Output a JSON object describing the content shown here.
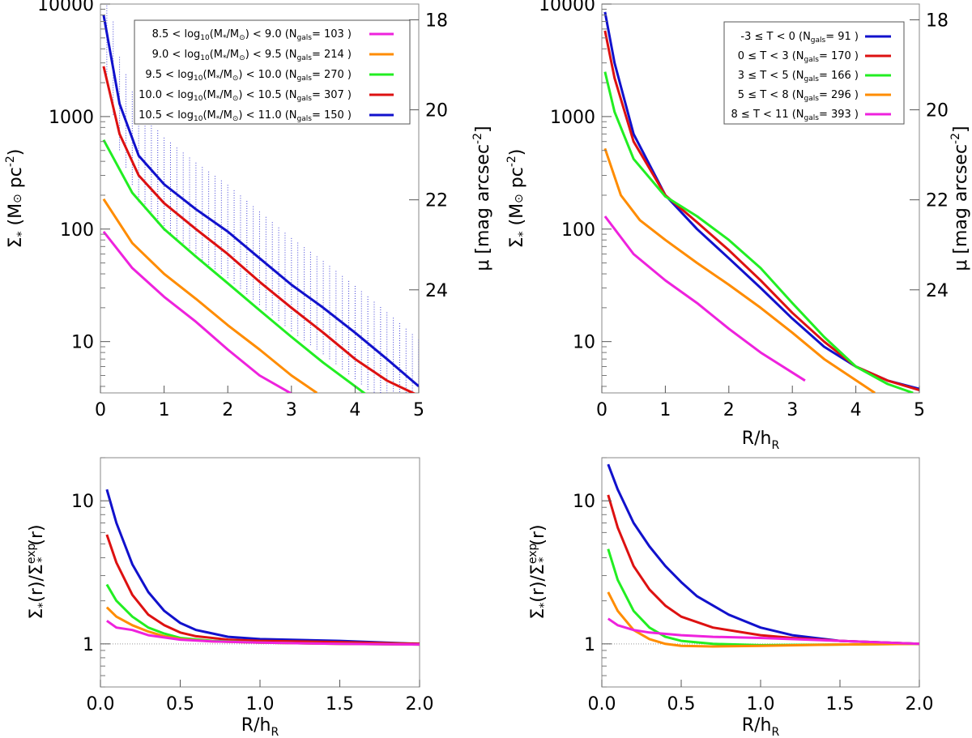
{
  "colors": {
    "magenta": "#ee22dd",
    "orange": "#ff8c00",
    "green": "#22ee22",
    "red": "#dd1111",
    "blue": "#1111cc"
  },
  "chart_data": [
    {
      "type": "line",
      "panel": "top-left",
      "xlabel": "",
      "ylabel_left": "Σ* (M⊙ pc⁻²)",
      "ylabel_right": "μ [mag arcsec⁻²]",
      "yscale": "log",
      "xlim": [
        0,
        5
      ],
      "ylim": [
        3.5,
        10000
      ],
      "xticks": [
        "0",
        "1",
        "2",
        "3",
        "4",
        "5"
      ],
      "yticks": [
        "10",
        "100",
        "1000",
        "10000"
      ],
      "right_ticks": [
        "18",
        "20",
        "22",
        "24"
      ],
      "legend_position": "top-right",
      "series": [
        {
          "name": "8.5 < log10(M*/M⊙) < 9.0  (Ngals= 103 )",
          "label_pre": "8.5 < log",
          "label_mid": "(M",
          "label_post": "/M",
          "label_end": ") < 9.0  (N",
          "label_count": "= 103 )",
          "color": "magenta",
          "x": [
            0.05,
            0.5,
            1,
            1.5,
            2,
            2.5,
            3.1
          ],
          "y": [
            95,
            45,
            25,
            15,
            8.5,
            5,
            3.2
          ]
        },
        {
          "name": "9.0 < log10(M*/M⊙) < 9.5  (Ngals= 214 )",
          "label_pre": "9.0 < log",
          "label_mid": "(M",
          "label_post": "/M",
          "label_end": ") < 9.5  (N",
          "label_count": "= 214 )",
          "color": "orange",
          "x": [
            0.05,
            0.5,
            1,
            1.5,
            2,
            2.5,
            3,
            3.4
          ],
          "y": [
            185,
            75,
            40,
            24,
            14,
            8.5,
            5,
            3.5
          ]
        },
        {
          "name": "9.5 < log10(M*/M⊙) < 10.0  (Ngals= 270 )",
          "label_pre": "9.5 < log",
          "label_mid": "(M",
          "label_post": "/M",
          "label_end": ") < 10.0  (N",
          "label_count": "= 270 )",
          "color": "green",
          "x": [
            0.05,
            0.5,
            1,
            1.5,
            2,
            2.5,
            3,
            3.5,
            4.2
          ],
          "y": [
            620,
            210,
            100,
            57,
            33,
            19,
            11,
            6.5,
            3.3
          ]
        },
        {
          "name": "10.0 < log10(M*/M⊙) < 10.5  (Ngals= 307 )",
          "label_pre": "10.0 < log",
          "label_mid": "(M",
          "label_post": "/M",
          "label_end": ") < 10.5  (N",
          "label_count": "= 307 )",
          "color": "red",
          "x": [
            0.05,
            0.3,
            0.6,
            1,
            1.5,
            2,
            2.5,
            3,
            3.5,
            4,
            4.5,
            5
          ],
          "y": [
            2800,
            700,
            300,
            170,
            100,
            60,
            34,
            20,
            12,
            7,
            4.5,
            3.3
          ]
        },
        {
          "name": "10.5 < log10(M*/M⊙) < 11.0  (Ngals= 150 )",
          "label_pre": "10.5 < log",
          "label_mid": "(M",
          "label_post": "/M",
          "label_end": ") < 11.0  (N",
          "label_count": "= 150 )",
          "color": "blue",
          "x": [
            0.05,
            0.3,
            0.6,
            1,
            1.5,
            2,
            2.5,
            3,
            3.5,
            4,
            4.5,
            5
          ],
          "y": [
            8000,
            1300,
            450,
            250,
            150,
            95,
            55,
            32,
            20,
            12,
            7,
            4
          ]
        }
      ]
    },
    {
      "type": "line",
      "panel": "top-right",
      "xlabel": "R/h",
      "xlabel_sub": "R",
      "ylabel_left": "Σ* (M⊙ pc⁻²)",
      "ylabel_right": "μ [mag arcsec⁻²]",
      "yscale": "log",
      "xlim": [
        0,
        5
      ],
      "ylim": [
        3.5,
        10000
      ],
      "xticks": [
        "0",
        "1",
        "2",
        "3",
        "4",
        "5"
      ],
      "yticks": [
        "10",
        "100",
        "1000",
        "10000"
      ],
      "right_ticks": [
        "18",
        "20",
        "22",
        "24"
      ],
      "legend_position": "top-right",
      "series": [
        {
          "name": "-3 ≤ T < 0  (Ngals= 91 )",
          "label_pre": "-3 ≤ T < 0  (N",
          "label_count": "= 91 )",
          "color": "blue",
          "x": [
            0.05,
            0.2,
            0.5,
            1,
            1.5,
            2,
            2.5,
            3,
            3.5,
            4,
            4.5,
            5
          ],
          "y": [
            8500,
            3000,
            700,
            200,
            100,
            55,
            30,
            16,
            9,
            6,
            4.5,
            3.8
          ]
        },
        {
          "name": "0 ≤ T < 3  (Ngals= 170 )",
          "label_pre": "0 ≤ T < 3  (N",
          "label_count": "= 170 )",
          "color": "red",
          "x": [
            0.05,
            0.2,
            0.5,
            1,
            1.5,
            2,
            2.5,
            3,
            3.5,
            4,
            4.5,
            5
          ],
          "y": [
            5800,
            2200,
            600,
            200,
            115,
            65,
            35,
            18,
            10,
            6,
            4.5,
            3.7
          ]
        },
        {
          "name": "3 ≤ T < 5  (Ngals= 166 )",
          "label_pre": "3 ≤ T < 5  (N",
          "label_count": "= 166 )",
          "color": "green",
          "x": [
            0.05,
            0.2,
            0.5,
            1,
            1.5,
            2,
            2.5,
            3,
            3.5,
            4,
            4.5,
            4.9
          ],
          "y": [
            2500,
            1100,
            420,
            195,
            130,
            80,
            45,
            22,
            11,
            6,
            4.2,
            3.5
          ]
        },
        {
          "name": "5 ≤ T < 8  (Ngals= 296 )",
          "label_pre": "5 ≤ T < 8  (N",
          "label_count": "= 296 )",
          "color": "orange",
          "x": [
            0.05,
            0.3,
            0.6,
            1,
            1.5,
            2,
            2.5,
            3,
            3.5,
            4.3
          ],
          "y": [
            520,
            200,
            120,
            80,
            50,
            32,
            20,
            12,
            7,
            3.5
          ]
        },
        {
          "name": "8 ≤ T < 11  (Ngals= 393 )",
          "label_pre": "8 ≤ T < 11  (N",
          "label_count": "= 393 )",
          "color": "magenta",
          "x": [
            0.05,
            0.5,
            1,
            1.5,
            2,
            2.5,
            3.2
          ],
          "y": [
            130,
            60,
            35,
            22,
            13,
            8,
            4.5
          ]
        }
      ]
    },
    {
      "type": "line",
      "panel": "bottom-left",
      "xlabel": "R/h",
      "xlabel_sub": "R",
      "ylabel": "Σ*(r)/Σ*exp(r)",
      "yscale": "log",
      "xlim": [
        0,
        2
      ],
      "ylim": [
        0.5,
        20
      ],
      "xticks": [
        "0.0",
        "0.5",
        "1.0",
        "1.5",
        "2.0"
      ],
      "yticks": [
        "1",
        "10"
      ],
      "reference_line": 1,
      "series": [
        {
          "name": "blue",
          "color": "blue",
          "x": [
            0.04,
            0.1,
            0.2,
            0.3,
            0.4,
            0.5,
            0.6,
            0.8,
            1,
            1.5,
            2
          ],
          "y": [
            12,
            7,
            3.6,
            2.3,
            1.7,
            1.4,
            1.25,
            1.12,
            1.08,
            1.05,
            1
          ]
        },
        {
          "name": "red",
          "color": "red",
          "x": [
            0.04,
            0.1,
            0.2,
            0.3,
            0.4,
            0.5,
            0.6,
            0.8,
            1,
            1.5,
            2
          ],
          "y": [
            5.8,
            3.7,
            2.2,
            1.6,
            1.35,
            1.2,
            1.13,
            1.07,
            1.05,
            1.03,
            1
          ]
        },
        {
          "name": "green",
          "color": "green",
          "x": [
            0.04,
            0.1,
            0.2,
            0.3,
            0.4,
            0.5,
            0.7,
            1,
            1.5,
            2
          ],
          "y": [
            2.6,
            2.0,
            1.55,
            1.3,
            1.18,
            1.1,
            1.05,
            1.02,
            1.0,
            0.99
          ]
        },
        {
          "name": "orange",
          "color": "orange",
          "x": [
            0.04,
            0.1,
            0.2,
            0.3,
            0.4,
            0.5,
            0.7,
            1,
            1.5,
            2
          ],
          "y": [
            1.8,
            1.55,
            1.35,
            1.22,
            1.13,
            1.08,
            1.04,
            1.02,
            1.0,
            0.99
          ]
        },
        {
          "name": "magenta",
          "color": "magenta",
          "x": [
            0.04,
            0.1,
            0.2,
            0.3,
            0.5,
            0.7,
            1,
            1.5,
            2
          ],
          "y": [
            1.45,
            1.3,
            1.25,
            1.15,
            1.07,
            1.04,
            1.02,
            1.0,
            0.99
          ]
        }
      ]
    },
    {
      "type": "line",
      "panel": "bottom-right",
      "xlabel": "R/h",
      "xlabel_sub": "R",
      "ylabel": "Σ*(r)/Σ*exp(r)",
      "yscale": "log",
      "xlim": [
        0,
        2
      ],
      "ylim": [
        0.5,
        20
      ],
      "xticks": [
        "0.0",
        "0.5",
        "1.0",
        "1.5",
        "2.0"
      ],
      "yticks": [
        "1",
        "10"
      ],
      "reference_line": 1,
      "series": [
        {
          "name": "blue",
          "color": "blue",
          "x": [
            0.04,
            0.1,
            0.2,
            0.3,
            0.4,
            0.5,
            0.6,
            0.8,
            1,
            1.2,
            1.5,
            2
          ],
          "y": [
            18,
            12,
            7,
            4.8,
            3.5,
            2.7,
            2.15,
            1.6,
            1.3,
            1.15,
            1.05,
            1
          ]
        },
        {
          "name": "red",
          "color": "red",
          "x": [
            0.04,
            0.1,
            0.2,
            0.3,
            0.4,
            0.5,
            0.7,
            1,
            1.2,
            1.5,
            2
          ],
          "y": [
            11,
            6.5,
            3.5,
            2.4,
            1.85,
            1.55,
            1.3,
            1.15,
            1.1,
            1.05,
            1
          ]
        },
        {
          "name": "green",
          "color": "green",
          "x": [
            0.04,
            0.1,
            0.2,
            0.3,
            0.4,
            0.5,
            0.7,
            1,
            1.5,
            2
          ],
          "y": [
            4.6,
            2.8,
            1.7,
            1.3,
            1.12,
            1.05,
            1.0,
            0.98,
            0.99,
            1
          ]
        },
        {
          "name": "orange",
          "color": "orange",
          "x": [
            0.04,
            0.1,
            0.2,
            0.3,
            0.4,
            0.5,
            0.7,
            1,
            1.5,
            2
          ],
          "y": [
            2.3,
            1.7,
            1.25,
            1.08,
            1.0,
            0.97,
            0.96,
            0.97,
            0.99,
            1
          ]
        },
        {
          "name": "magenta",
          "color": "magenta",
          "x": [
            0.04,
            0.1,
            0.2,
            0.3,
            0.5,
            0.7,
            1,
            1.5,
            2
          ],
          "y": [
            1.5,
            1.35,
            1.25,
            1.2,
            1.15,
            1.12,
            1.1,
            1.05,
            1
          ]
        }
      ]
    }
  ]
}
